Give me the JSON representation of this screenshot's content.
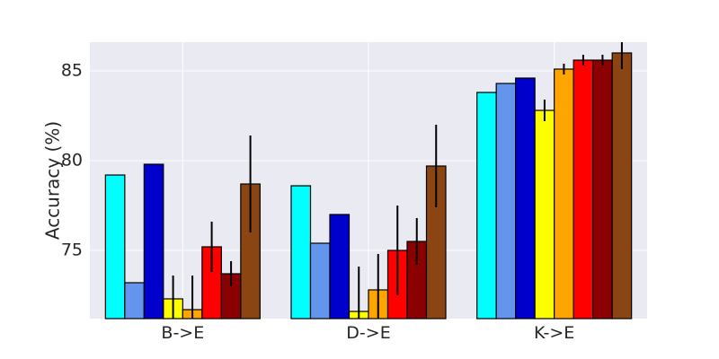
{
  "chart_data": {
    "type": "bar",
    "categories": [
      "B->E",
      "D->E",
      "K->E"
    ],
    "ylabel": "Accuracy (%)",
    "xlabel": "",
    "ylim": [
      71.2,
      86.6
    ],
    "yticks": [
      75,
      80,
      85
    ],
    "grid": true,
    "background_color": "#eaeaf2",
    "series": [
      {
        "color": "#00ffff",
        "values": [
          79.2,
          78.6,
          83.8
        ],
        "errors": [
          null,
          null,
          null
        ]
      },
      {
        "color": "#6495ed",
        "values": [
          73.2,
          75.4,
          84.3
        ],
        "errors": [
          null,
          null,
          null
        ]
      },
      {
        "color": "#0000cd",
        "values": [
          79.8,
          77.0,
          84.6
        ],
        "errors": [
          null,
          null,
          null
        ]
      },
      {
        "color": "#ffff00",
        "values": [
          72.3,
          71.6,
          82.8
        ],
        "errors": [
          1.3,
          2.5,
          0.6
        ]
      },
      {
        "color": "#ffa500",
        "values": [
          71.7,
          72.8,
          85.1
        ],
        "errors": [
          1.9,
          2.0,
          0.3
        ]
      },
      {
        "color": "#ff0000",
        "values": [
          75.2,
          75.0,
          85.6
        ],
        "errors": [
          1.4,
          2.5,
          0.3
        ]
      },
      {
        "color": "#8b0000",
        "values": [
          73.7,
          75.5,
          85.6
        ],
        "errors": [
          0.7,
          1.3,
          0.3
        ]
      },
      {
        "color": "#8b4513",
        "values": [
          78.7,
          79.7,
          86.0
        ],
        "errors": [
          2.7,
          2.3,
          0.9
        ]
      }
    ]
  }
}
